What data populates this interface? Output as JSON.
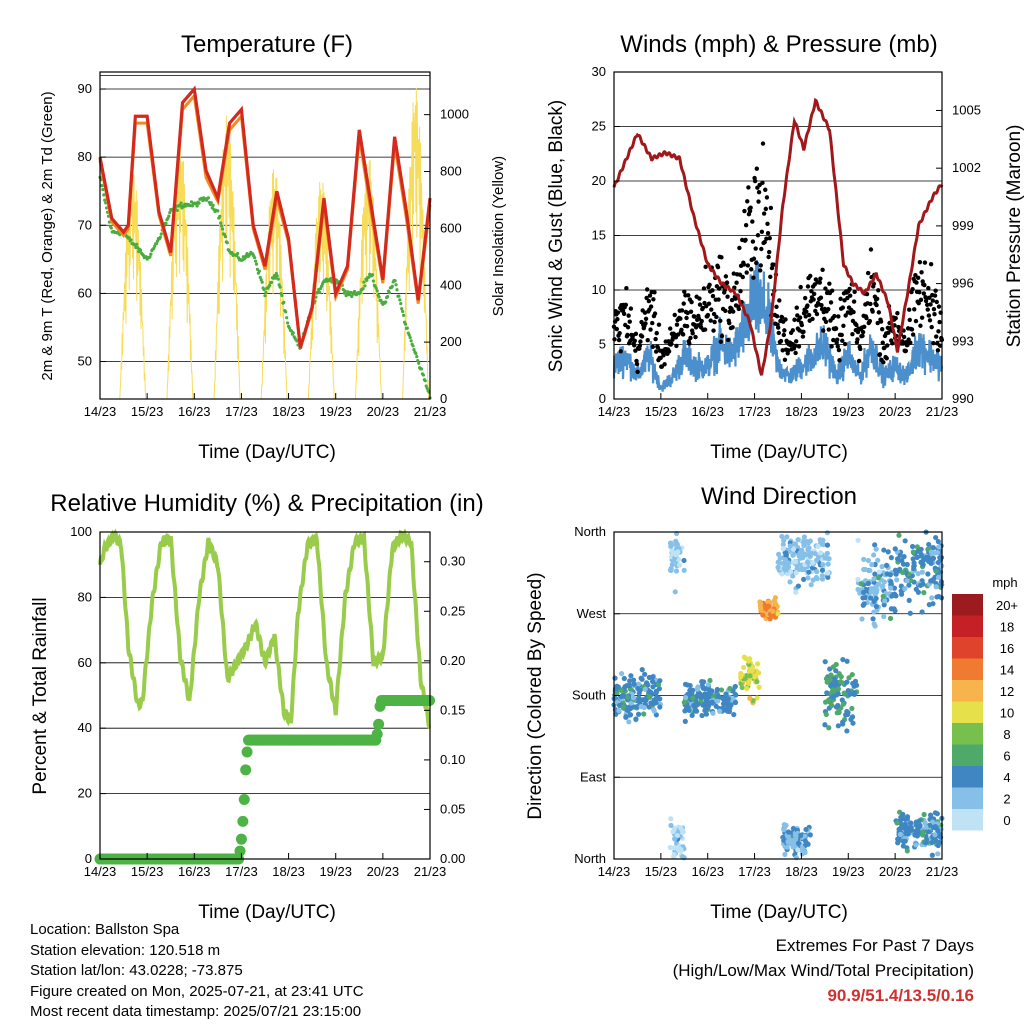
{
  "time_ticks": [
    "14/23",
    "15/23",
    "16/23",
    "17/23",
    "18/23",
    "19/23",
    "20/23",
    "21/23"
  ],
  "panels": {
    "temperature": {
      "title": "Temperature (F)",
      "xlabel": "Time (Day/UTC)",
      "ylabel_left": "2m & 9m T (Red, Orange) & 2m Td (Green)",
      "ylabel_right": "Solar Insolation (Yellow)",
      "left_ticks": [
        "50",
        "60",
        "70",
        "80",
        "90"
      ],
      "right_ticks": [
        "0",
        "200",
        "400",
        "600",
        "800",
        "1000"
      ]
    },
    "winds": {
      "title": "Winds (mph) & Pressure (mb)",
      "xlabel": "Time (Day/UTC)",
      "ylabel_left": "Sonic Wind & Gust (Blue, Black)",
      "ylabel_right": "Station Pressure (Maroon)",
      "left_ticks": [
        "0",
        "5",
        "10",
        "15",
        "20",
        "25",
        "30"
      ],
      "right_ticks": [
        "990",
        "993",
        "996",
        "999",
        "1002",
        "1005"
      ]
    },
    "humidity": {
      "title": "Relative Humidity (%) & Precipitation (in)",
      "xlabel": "Time (Day/UTC)",
      "ylabel_left": "Percent & Total Rainfall",
      "left_ticks": [
        "0",
        "20",
        "40",
        "60",
        "80",
        "100"
      ],
      "right_ticks": [
        "0.00",
        "0.05",
        "0.10",
        "0.15",
        "0.20",
        "0.25",
        "0.30"
      ]
    },
    "direction": {
      "title": "Wind Direction",
      "xlabel": "Time (Day/UTC)",
      "ylabel_left": "Direction (Colored By Speed)",
      "left_ticks": [
        "North",
        "East",
        "South",
        "West",
        "North"
      ],
      "legend_title": "mph",
      "legend_labels": [
        "0",
        "2",
        "4",
        "6",
        "8",
        "10",
        "12",
        "14",
        "16",
        "18",
        "20+"
      ],
      "legend_colors": [
        "#bfe3f5",
        "#86c0e8",
        "#3f86c2",
        "#4fa96b",
        "#78c04e",
        "#e6e04a",
        "#f7b34c",
        "#f07a30",
        "#e0432b",
        "#c42026",
        "#9b1b1e"
      ]
    }
  },
  "colors": {
    "temp_red": "#d42a1e",
    "temp_orange": "#f08a24",
    "dewpoint_green": "#4aac3e",
    "solar_yellow": "#f7dc5a",
    "wind_blue": "#4b8fcc",
    "gust_black": "#000000",
    "pressure_maroon": "#a0181a",
    "rh_light_green": "#99cc4a",
    "precip_green": "#4cb344"
  },
  "station_info": {
    "location": "Location: Ballston Spa",
    "elevation": "Station elevation: 120.518 m",
    "latlon": "Station lat/lon: 43.0228; -73.875",
    "created": "Figure created on Mon, 2025-07-21, at 23:41 UTC",
    "recent": "Most recent data timestamp: 2025/07/21 23:15:00"
  },
  "extremes": {
    "line1": "Extremes For Past 7 Days",
    "line2": "(High/Low/Max Wind/Total Precipitation)",
    "values": "90.9/51.4/13.5/0.16"
  },
  "chart_data": [
    {
      "type": "line",
      "title": "Temperature (F)",
      "xlabel": "Time (Day/UTC)",
      "ylabel": "2m & 9m T (Red, Orange) & 2m Td (Green)",
      "ylabel_right": "Solar Insolation (Yellow)",
      "x_day": [
        0,
        0.25,
        0.5,
        0.6,
        0.75,
        1,
        1.25,
        1.5,
        1.75,
        2,
        2.25,
        2.5,
        2.75,
        3,
        3.25,
        3.5,
        3.75,
        4,
        4.25,
        4.5,
        4.75,
        5,
        5.25,
        5.5,
        5.75,
        6,
        6.25,
        6.5,
        6.75,
        7
      ],
      "ylim": [
        44.5,
        92.5
      ],
      "ylim_right": [
        0,
        1150
      ],
      "series": [
        {
          "name": "2m T",
          "values": [
            80,
            71,
            69,
            70,
            86,
            86,
            72,
            66,
            88,
            90,
            78,
            74,
            85,
            87,
            70,
            64,
            75,
            68,
            52,
            58,
            74,
            60,
            64,
            84,
            73,
            62,
            83,
            72,
            59,
            74
          ]
        },
        {
          "name": "9m T",
          "values": [
            79.5,
            70.5,
            68.5,
            69.5,
            85,
            85,
            71.5,
            65.5,
            87,
            89,
            77,
            73.5,
            84,
            86,
            69.5,
            63.5,
            74,
            67.5,
            52,
            57.5,
            73,
            59.5,
            63.5,
            83,
            72,
            61.5,
            82,
            71,
            58.5,
            73
          ]
        },
        {
          "name": "2m Td",
          "values": [
            77,
            69,
            69,
            68,
            67,
            65,
            68,
            72,
            73,
            73,
            74,
            72,
            66,
            65,
            66,
            60,
            63,
            55,
            52,
            58,
            62,
            62,
            60,
            60,
            63,
            58,
            62,
            55,
            50,
            45
          ]
        }
      ],
      "solar": {
        "day_starts": [
          0.42,
          1.42,
          2.42,
          3.42,
          4.42,
          5.42,
          6.42
        ],
        "peaks": [
          820,
          920,
          1000,
          820,
          780,
          860,
          1100
        ]
      }
    },
    {
      "type": "line",
      "title": "Winds (mph) & Pressure (mb)",
      "xlabel": "Time (Day/UTC)",
      "ylabel": "Sonic Wind & Gust (Blue, Black)",
      "ylabel_right": "Station Pressure (Maroon)",
      "ylim": [
        0,
        30
      ],
      "ylim_right": [
        990,
        1007
      ],
      "pressure": {
        "x_day": [
          0,
          0.5,
          0.8,
          1.1,
          1.4,
          1.7,
          2,
          2.3,
          2.6,
          2.9,
          3.15,
          3.35,
          3.6,
          3.85,
          4.05,
          4.3,
          4.6,
          4.9,
          5.1,
          5.35,
          5.6,
          5.85,
          6.05,
          6.3,
          6.5,
          6.8,
          7
        ],
        "values": [
          1001,
          1003.8,
          1002.5,
          1002.8,
          1002.5,
          999.5,
          997,
          996,
          995.5,
          994,
          991.2,
          994,
          1000,
          1004.5,
          1003,
          1005.5,
          1004,
          997,
          996,
          995.5,
          996.5,
          995,
          992.5,
          996,
          999,
          1000.5,
          1001.2
        ]
      },
      "wind_envelope": {
        "x_day": [
          0,
          0.25,
          0.5,
          0.75,
          1,
          1.25,
          1.5,
          1.75,
          2,
          2.25,
          2.5,
          2.75,
          3,
          3.25,
          3.5,
          3.75,
          4,
          4.25,
          4.5,
          4.75,
          5,
          5.25,
          5.5,
          5.75,
          6,
          6.25,
          6.5,
          6.75,
          7
        ],
        "sustained": [
          3,
          4,
          2,
          4,
          1,
          2,
          4,
          3,
          3,
          5,
          4,
          6,
          9,
          8,
          3,
          2,
          3,
          4,
          5,
          2,
          4,
          2,
          5,
          2,
          3,
          2,
          5,
          4,
          3
        ],
        "gust": [
          6,
          8,
          4,
          9,
          4,
          5,
          8,
          7,
          9,
          10,
          8,
          12,
          18,
          16,
          7,
          5,
          8,
          9,
          10,
          5,
          9,
          5,
          11,
          5,
          7,
          5,
          10,
          9,
          7
        ]
      }
    },
    {
      "type": "line",
      "title": "Relative Humidity (%) & Precipitation (in)",
      "xlabel": "Time (Day/UTC)",
      "ylabel": "Percent & Total Rainfall",
      "ylim": [
        0,
        100
      ],
      "ylim_right": [
        0,
        0.33
      ],
      "rh": {
        "x_day": [
          0,
          0.1,
          0.3,
          0.45,
          0.6,
          0.8,
          0.9,
          1.1,
          1.3,
          1.5,
          1.7,
          1.9,
          2.1,
          2.3,
          2.5,
          2.7,
          2.9,
          3.1,
          3.3,
          3.5,
          3.7,
          3.9,
          4.05,
          4.2,
          4.4,
          4.6,
          4.8,
          5,
          5.2,
          5.4,
          5.6,
          5.8,
          6,
          6.2,
          6.4,
          6.6,
          6.8,
          7
        ],
        "values": [
          90,
          95,
          99,
          96,
          65,
          47,
          48,
          78,
          97,
          98,
          62,
          48,
          80,
          97,
          90,
          55,
          60,
          65,
          72,
          60,
          68,
          45,
          42,
          75,
          96,
          98,
          60,
          45,
          80,
          97,
          98,
          60,
          62,
          95,
          99,
          97,
          55,
          40
        ]
      },
      "precip": {
        "x_day": [
          0,
          2.95,
          3.0,
          3.05,
          3.1,
          3.15,
          5.85,
          5.9,
          5.95,
          7
        ],
        "values": [
          0,
          0,
          0.02,
          0.05,
          0.1,
          0.12,
          0.12,
          0.13,
          0.16,
          0.16
        ]
      }
    },
    {
      "type": "scatter",
      "title": "Wind Direction",
      "xlabel": "Time (Day/UTC)",
      "ylabel": "Direction (Colored By Speed)",
      "ylim_degrees": [
        0,
        360
      ],
      "y_tick_degrees": [
        0,
        90,
        180,
        270,
        360
      ],
      "clusters": [
        {
          "day_range": [
            0,
            1.0
          ],
          "center": 180,
          "spread": 30,
          "speed": 4
        },
        {
          "day_range": [
            1.2,
            1.5
          ],
          "center": 330,
          "spread": 30,
          "speed": 1
        },
        {
          "day_range": [
            1.2,
            1.5
          ],
          "center": 20,
          "spread": 25,
          "speed": 1
        },
        {
          "day_range": [
            1.5,
            2.6
          ],
          "center": 175,
          "spread": 20,
          "speed": 4
        },
        {
          "day_range": [
            2.7,
            3.1
          ],
          "center": 200,
          "spread": 25,
          "speed": 10
        },
        {
          "day_range": [
            3.1,
            3.5
          ],
          "center": 275,
          "spread": 12,
          "speed": 13
        },
        {
          "day_range": [
            3.5,
            4.6
          ],
          "center": 330,
          "spread": 30,
          "speed": 2
        },
        {
          "day_range": [
            4.5,
            5.2
          ],
          "center": 180,
          "spread": 40,
          "speed": 5
        },
        {
          "day_range": [
            5.2,
            6.0
          ],
          "center": 300,
          "spread": 45,
          "speed": 3
        },
        {
          "day_range": [
            6.0,
            7.0
          ],
          "center": 320,
          "spread": 40,
          "speed": 4
        },
        {
          "day_range": [
            3.6,
            4.2
          ],
          "center": 20,
          "spread": 20,
          "speed": 3
        },
        {
          "day_range": [
            6.0,
            7.0
          ],
          "center": 30,
          "spread": 20,
          "speed": 4
        }
      ]
    }
  ]
}
